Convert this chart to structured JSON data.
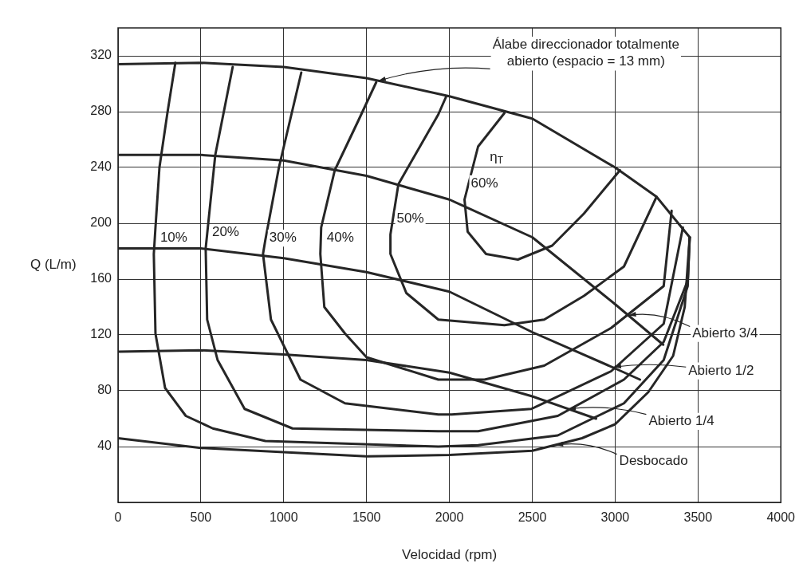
{
  "chart_data": {
    "type": "line",
    "xlabel": "Velocidad (rpm)",
    "ylabel": "Q (L/m)",
    "xlim": [
      0,
      4000
    ],
    "xticks": [
      0,
      500,
      1000,
      1500,
      2000,
      2500,
      3000,
      3500,
      4000
    ],
    "ylim": [
      0,
      340
    ],
    "yticks": [
      40,
      80,
      120,
      160,
      200,
      240,
      280,
      320
    ],
    "grid": true,
    "legend": false,
    "marker": "none",
    "line_style": "solid",
    "series": [
      {
        "color": "#262626",
        "x": [
          0,
          500,
          1000,
          1500,
          2000,
          2500,
          3000,
          3250,
          3450
        ],
        "values": [
          314,
          315,
          312,
          304,
          291,
          275,
          240,
          219,
          190
        ]
      },
      {
        "color": "#262626",
        "x": [
          0,
          500,
          1000,
          1500,
          2000,
          2500,
          3000,
          3290
        ],
        "values": [
          249,
          249,
          245,
          234,
          217,
          190,
          142,
          113
        ]
      },
      {
        "color": "#262626",
        "x": [
          0,
          500,
          1000,
          1500,
          2000,
          2500,
          3000,
          3150
        ],
        "values": [
          182,
          182,
          175,
          165,
          151,
          122,
          96,
          88
        ]
      },
      {
        "color": "#262626",
        "x": [
          0,
          500,
          1000,
          1500,
          2000,
          2500,
          2885
        ],
        "values": [
          108,
          109,
          106,
          102,
          93,
          76,
          60
        ]
      },
      {
        "color": "#262626",
        "x": [
          0,
          500,
          1000,
          1500,
          2000,
          2500,
          2800,
          3000,
          3200,
          3350,
          3420,
          3450
        ],
        "values": [
          46,
          39,
          36,
          33,
          34,
          37,
          46,
          56,
          79,
          105,
          140,
          190
        ]
      },
      {
        "name": "10%",
        "color": "#262626",
        "x": [
          346,
          298,
          250,
          226,
          216,
          226,
          284,
          409,
          572,
          889,
          1933,
          2173,
          2654,
          3053,
          3293,
          3438,
          3450
        ],
        "values": [
          315,
          279,
          240,
          197,
          178,
          121,
          82,
          62,
          53,
          44,
          40,
          41,
          48,
          71,
          102,
          155,
          190
        ]
      },
      {
        "name": "20%",
        "color": "#262626",
        "x": [
          692,
          587,
          529,
          538,
          601,
          764,
          1053,
          1933,
          2173,
          2654,
          3053,
          3293,
          3438,
          3450
        ],
        "values": [
          312,
          249,
          182,
          131,
          102,
          67,
          53,
          51,
          51,
          62,
          88,
          115,
          159,
          190
        ]
      },
      {
        "name": "30%",
        "color": "#262626",
        "x": [
          1106,
          971,
          889,
          875,
          923,
          1101,
          1370,
          1933,
          2014,
          2495,
          2976,
          3293,
          3409
        ],
        "values": [
          308,
          240,
          188,
          178,
          131,
          88,
          71,
          63,
          63,
          67,
          94,
          128,
          197
        ]
      },
      {
        "name": "40%",
        "color": "#262626",
        "x": [
          1558,
          1452,
          1308,
          1226,
          1221,
          1245,
          1370,
          1500,
          1933,
          2212,
          2572,
          2976,
          3293,
          3341
        ],
        "values": [
          301,
          274,
          238,
          197,
          178,
          140,
          121,
          104,
          88,
          88,
          98,
          125,
          155,
          209
        ]
      },
      {
        "name": "50%",
        "color": "#262626",
        "x": [
          1981,
          1933,
          1692,
          1644,
          1644,
          1740,
          1933,
          2332,
          2572,
          2812,
          3053,
          3250
        ],
        "values": [
          291,
          278,
          228,
          192,
          178,
          150,
          131,
          127,
          131,
          148,
          169,
          219
        ]
      },
      {
        "name": "60%",
        "color": "#262626",
        "x": [
          2332,
          2173,
          2091,
          2110,
          2221,
          2413,
          2620,
          2812,
          3029
        ],
        "values": [
          279,
          255,
          217,
          194,
          178,
          174,
          184,
          207,
          238
        ]
      }
    ],
    "annotations": [
      {
        "text": "Álabe direccionador totalmente abierto (espacio = 13 mm)",
        "x": 1570,
        "y": 302
      },
      "η$_{T}$",
      {
        "text": "Abierto 3/4",
        "x": 3080,
        "y": 134
      },
      {
        "text": "Abierto 1/2",
        "x": 2990,
        "y": 97
      },
      {
        "text": "Abierto 1/4",
        "x": 2716,
        "y": 67
      },
      {
        "text": "Desbocado",
        "x": 2640,
        "y": 41
      }
    ]
  }
}
